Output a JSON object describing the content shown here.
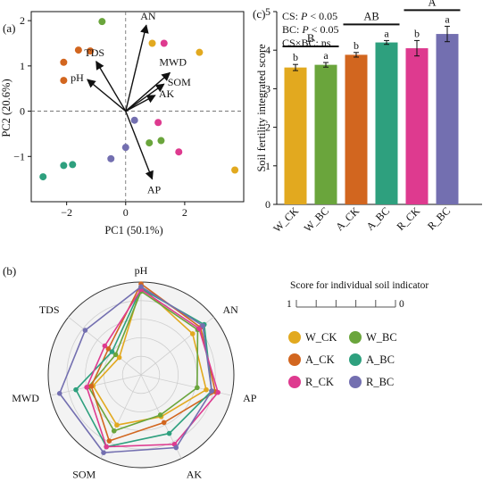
{
  "colors": {
    "W_CK": "#e2a91f",
    "W_BC": "#6aa53c",
    "A_CK": "#d2661f",
    "A_BC": "#2ea07e",
    "R_CK": "#de3a8f",
    "R_BC": "#736fb0"
  },
  "chart_data": [
    {
      "panel": "(a)",
      "type": "scatter",
      "xlabel": "PC1 (50.1%)",
      "ylabel": "PC2 (20.6%)",
      "xlim": [
        -3.2,
        4.0
      ],
      "ylim": [
        -2.0,
        2.2
      ],
      "xticks": [
        -2,
        0,
        2
      ],
      "yticks": [
        -1,
        0,
        1,
        2
      ],
      "tick_labels_x": [
        "−2",
        "0",
        "2"
      ],
      "tick_labels_y": [
        "−1",
        "0",
        "1",
        "2"
      ],
      "points": [
        {
          "group": "W_BC",
          "x": -0.8,
          "y": 1.98
        },
        {
          "group": "A_CK",
          "x": -1.6,
          "y": 1.35
        },
        {
          "group": "A_CK",
          "x": -1.2,
          "y": 1.33
        },
        {
          "group": "A_CK",
          "x": -2.1,
          "y": 1.08
        },
        {
          "group": "A_CK",
          "x": -2.1,
          "y": 0.68
        },
        {
          "group": "W_CK",
          "x": 0.9,
          "y": 1.5
        },
        {
          "group": "R_CK",
          "x": 1.3,
          "y": 1.5
        },
        {
          "group": "W_CK",
          "x": 2.5,
          "y": 1.3
        },
        {
          "group": "R_BC",
          "x": 0.3,
          "y": -0.2
        },
        {
          "group": "R_CK",
          "x": 1.1,
          "y": -0.25
        },
        {
          "group": "W_BC",
          "x": 1.2,
          "y": -0.65
        },
        {
          "group": "W_BC",
          "x": 0.8,
          "y": -0.7
        },
        {
          "group": "R_BC",
          "x": 0.0,
          "y": -0.8
        },
        {
          "group": "R_CK",
          "x": 1.8,
          "y": -0.9
        },
        {
          "group": "R_BC",
          "x": -0.5,
          "y": -1.05
        },
        {
          "group": "A_BC",
          "x": -1.8,
          "y": -1.18
        },
        {
          "group": "A_BC",
          "x": -2.1,
          "y": -1.2
        },
        {
          "group": "A_BC",
          "x": -2.8,
          "y": -1.45
        },
        {
          "group": "W_CK",
          "x": 3.7,
          "y": -1.3
        }
      ],
      "loadings": [
        {
          "label": "AN",
          "x": 0.7,
          "y": 1.9
        },
        {
          "label": "TDS",
          "x": -1.0,
          "y": 1.1
        },
        {
          "label": "pH",
          "x": -1.3,
          "y": 0.7
        },
        {
          "label": "MWD",
          "x": 1.5,
          "y": 0.85
        },
        {
          "label": "SOM",
          "x": 1.3,
          "y": 0.6
        },
        {
          "label": "AK",
          "x": 1.0,
          "y": 0.35
        },
        {
          "label": "AP",
          "x": 0.9,
          "y": -1.5
        }
      ]
    },
    {
      "panel": "(c)",
      "type": "bar",
      "ylabel": "Soil fertility integrated score",
      "ylim": [
        0,
        5
      ],
      "yticks": [
        0,
        1,
        2,
        3,
        4,
        5
      ],
      "categories": [
        "W_CK",
        "W_BC",
        "A_CK",
        "A_BC",
        "R_CK",
        "R_BC"
      ],
      "values": [
        3.55,
        3.62,
        3.88,
        4.2,
        4.05,
        4.42
      ],
      "errors": [
        0.08,
        0.06,
        0.06,
        0.05,
        0.2,
        0.2
      ],
      "letters": [
        "b",
        "a",
        "b",
        "a",
        "b",
        "a"
      ],
      "group_letters": [
        "B",
        "AB",
        "A"
      ],
      "stats": [
        {
          "prefix": "CS: ",
          "p": "P",
          "suffix": " < 0.05"
        },
        {
          "prefix": "BC: ",
          "p": "P",
          "suffix": " < 0.05"
        },
        {
          "prefix": "CS×BC: ns",
          "p": "",
          "suffix": ""
        }
      ]
    },
    {
      "panel": "(b)",
      "type": "radar",
      "axes": [
        "pH",
        "AN",
        "AP",
        "AK",
        "SOM",
        "MWD",
        "TDS"
      ],
      "scale_title": "Score for individual soil indicator",
      "scale_min_label": "1",
      "scale_max_label": "0",
      "series": [
        {
          "name": "W_CK",
          "values": [
            0.95,
            0.71,
            0.72,
            0.5,
            0.6,
            0.53,
            0.3
          ]
        },
        {
          "name": "W_BC",
          "values": [
            0.9,
            0.78,
            0.62,
            0.48,
            0.67,
            0.58,
            0.35
          ]
        },
        {
          "name": "A_CK",
          "values": [
            0.98,
            0.82,
            0.82,
            0.57,
            0.79,
            0.55,
            0.45
          ]
        },
        {
          "name": "A_BC",
          "values": [
            0.93,
            0.87,
            0.78,
            0.7,
            0.86,
            0.72,
            0.4
          ]
        },
        {
          "name": "R_CK",
          "values": [
            0.92,
            0.8,
            0.85,
            0.83,
            0.86,
            0.6,
            0.5
          ]
        },
        {
          "name": "R_BC",
          "values": [
            0.95,
            0.85,
            0.78,
            0.87,
            0.93,
            0.9,
            0.77
          ]
        }
      ]
    }
  ],
  "legend": [
    "W_CK",
    "W_BC",
    "A_CK",
    "A_BC",
    "R_CK",
    "R_BC"
  ]
}
